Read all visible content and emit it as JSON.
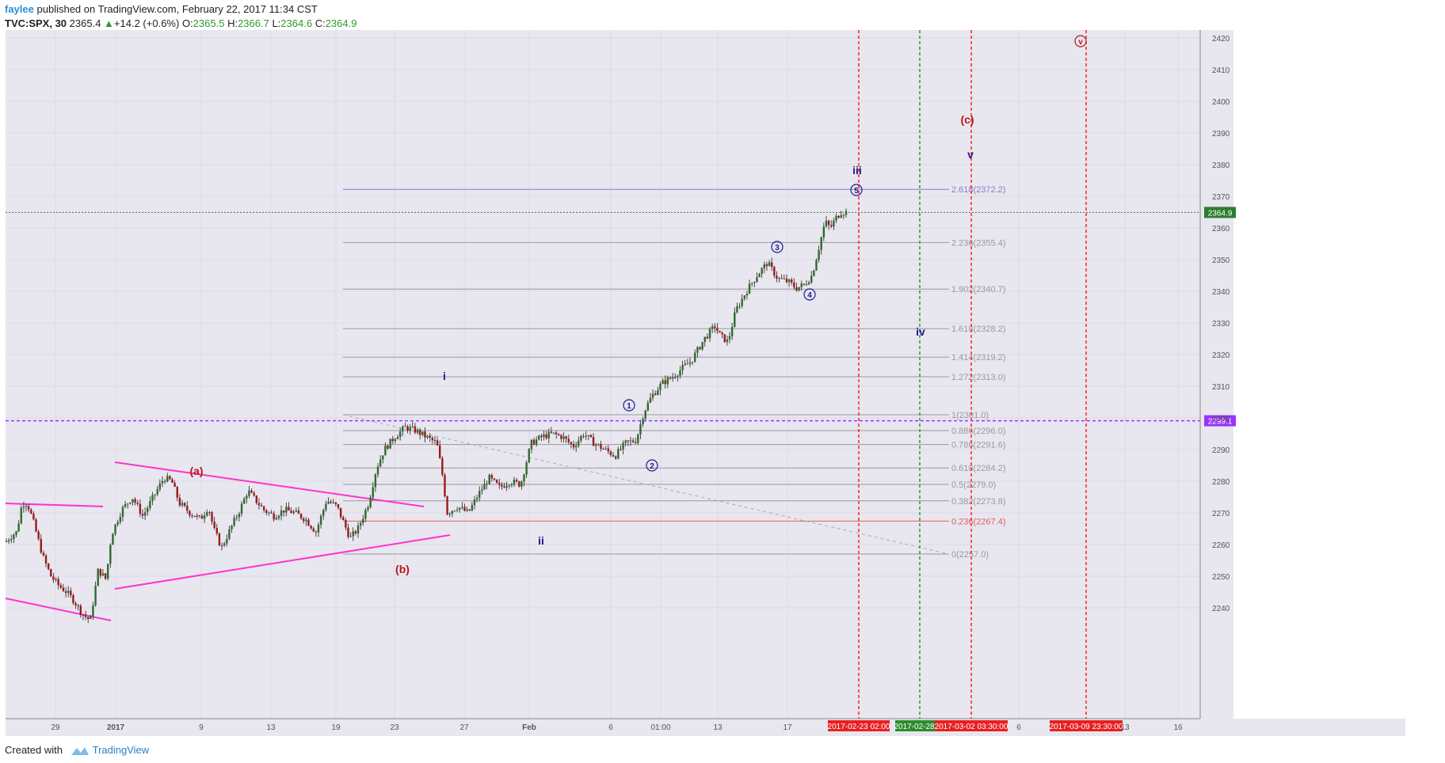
{
  "header": {
    "user": "faylee",
    "published": "published on TradingView.com, February 22, 2017 11:34 CST",
    "symbol": "TVC:SPX, 30",
    "last": "2365.4",
    "change": "+14.2 (+0.6%)",
    "o_label": "O:",
    "o_value": "2365.5",
    "h_label": "H:",
    "h_value": "2366.7",
    "l_label": "L:",
    "l_value": "2364.6",
    "c_label": "C:",
    "c_value": "2364.9"
  },
  "footer": {
    "created": "Created with",
    "brand": "TradingView"
  },
  "colors": {
    "bg": "#e8e6ef",
    "up": "#2e6b2e",
    "down": "#9b1a1a",
    "channel": "#ff33cc",
    "fib": "#9a9a9a",
    "fib_top": "#8080d0",
    "fib_low": "#e06060",
    "redline": "#ff2222",
    "greenline": "#339933",
    "purple": "#9933ff",
    "wave_red": "#b81818",
    "wave_blue": "#1c1c8c"
  },
  "chart_data": {
    "type": "candlestick",
    "title": "",
    "ylabel": "",
    "ylim": [
      2234,
      2421
    ],
    "y_ticks": [
      2240.0,
      2250.0,
      2260.0,
      2270.0,
      2280.0,
      2290.0,
      2300.0,
      2310.0,
      2320.0,
      2330.0,
      2340.0,
      2350.0,
      2360.0,
      2370.0,
      2380.0,
      2390.0,
      2400.0,
      2410.0,
      2420.0
    ],
    "x_ticks": [
      "29",
      "2017",
      "9",
      "13",
      "19",
      "23",
      "27",
      "Feb",
      "6",
      "01:00",
      "13",
      "17",
      "6",
      "13",
      "16"
    ],
    "price_path": [
      [
        0,
        2261
      ],
      [
        0.05,
        2262
      ],
      [
        0.12,
        2263
      ],
      [
        0.2,
        2264
      ],
      [
        0.3,
        2273
      ],
      [
        0.4,
        2273
      ],
      [
        0.5,
        2268
      ],
      [
        0.6,
        2262
      ],
      [
        0.7,
        2256
      ],
      [
        0.85,
        2250
      ],
      [
        1.0,
        2247
      ],
      [
        1.15,
        2245
      ],
      [
        1.3,
        2242
      ],
      [
        1.45,
        2238
      ],
      [
        1.6,
        2236
      ],
      [
        1.75,
        2252
      ],
      [
        1.9,
        2249
      ],
      [
        2.0,
        2263
      ],
      [
        2.2,
        2271
      ],
      [
        2.4,
        2275
      ],
      [
        2.6,
        2269
      ],
      [
        2.8,
        2275
      ],
      [
        3.0,
        2281
      ],
      [
        3.15,
        2280
      ],
      [
        3.3,
        2273
      ],
      [
        3.5,
        2270
      ],
      [
        3.7,
        2268
      ],
      [
        3.85,
        2272
      ],
      [
        3.95,
        2265
      ],
      [
        4.1,
        2259
      ],
      [
        4.3,
        2266
      ],
      [
        4.45,
        2271
      ],
      [
        4.6,
        2277
      ],
      [
        4.75,
        2274
      ],
      [
        4.9,
        2271
      ],
      [
        5.1,
        2269
      ],
      [
        5.3,
        2271
      ],
      [
        5.5,
        2270
      ],
      [
        5.7,
        2268
      ],
      [
        5.9,
        2264
      ],
      [
        6.1,
        2274
      ],
      [
        6.3,
        2272
      ],
      [
        6.45,
        2266
      ],
      [
        6.55,
        2262
      ],
      [
        6.7,
        2265
      ],
      [
        6.9,
        2273
      ],
      [
        7.05,
        2284
      ],
      [
        7.2,
        2290
      ],
      [
        7.4,
        2294
      ],
      [
        7.6,
        2297
      ],
      [
        7.8,
        2296
      ],
      [
        8.0,
        2294
      ],
      [
        8.2,
        2292
      ],
      [
        8.3,
        2283
      ],
      [
        8.4,
        2270
      ],
      [
        8.6,
        2272
      ],
      [
        8.8,
        2270
      ],
      [
        9.0,
        2276
      ],
      [
        9.2,
        2281
      ],
      [
        9.4,
        2278
      ],
      [
        9.6,
        2280
      ],
      [
        9.8,
        2279
      ],
      [
        10.0,
        2292
      ],
      [
        10.2,
        2294
      ],
      [
        10.4,
        2295
      ],
      [
        10.6,
        2294
      ],
      [
        10.8,
        2291
      ],
      [
        11.0,
        2295
      ],
      [
        11.2,
        2292
      ],
      [
        11.4,
        2290
      ],
      [
        11.6,
        2288
      ],
      [
        11.8,
        2292
      ],
      [
        12.0,
        2293
      ],
      [
        12.15,
        2302
      ],
      [
        12.3,
        2307
      ],
      [
        12.5,
        2311
      ],
      [
        12.7,
        2313
      ],
      [
        12.9,
        2316
      ],
      [
        13.05,
        2318
      ],
      [
        13.3,
        2325
      ],
      [
        13.5,
        2329
      ],
      [
        13.6,
        2326
      ],
      [
        13.75,
        2324
      ],
      [
        13.9,
        2334
      ],
      [
        14.1,
        2340
      ],
      [
        14.3,
        2345
      ],
      [
        14.5,
        2349
      ],
      [
        14.7,
        2344
      ],
      [
        14.9,
        2343
      ],
      [
        15.05,
        2341
      ],
      [
        15.2,
        2342
      ],
      [
        15.35,
        2345
      ],
      [
        15.5,
        2355
      ],
      [
        15.6,
        2362
      ],
      [
        15.7,
        2360
      ],
      [
        15.8,
        2363
      ],
      [
        15.9,
        2365
      ],
      [
        16.0,
        2365
      ]
    ],
    "fib_levels": [
      {
        "label": "2.618(2372.2)",
        "value": 2372.2
      },
      {
        "label": "2.236(2355.4)",
        "value": 2355.4
      },
      {
        "label": "1.902(2340.7)",
        "value": 2340.7
      },
      {
        "label": "1.618(2328.2)",
        "value": 2328.2
      },
      {
        "label": "1.414(2319.2)",
        "value": 2319.2
      },
      {
        "label": "1.272(2313.0)",
        "value": 2313.0
      },
      {
        "label": "1(2301.0)",
        "value": 2301.0
      },
      {
        "label": "0.886(2296.0)",
        "value": 2296.0
      },
      {
        "label": "0.786(2291.6)",
        "value": 2291.6
      },
      {
        "label": "0.618(2284.2)",
        "value": 2284.2
      },
      {
        "label": "0.5(2279.0)",
        "value": 2279.0
      },
      {
        "label": "0.382(2273.8)",
        "value": 2273.8
      },
      {
        "label": "0.236(2267.4)",
        "value": 2267.4
      },
      {
        "label": "0(2257.0)",
        "value": 2257.0
      }
    ],
    "horizontal_lines": {
      "current": 2364.9,
      "purple": 2299.1
    },
    "price_tags": {
      "current": "2364.9",
      "purple": "2299.1"
    },
    "vertical_lines": [
      {
        "label": "2017-02-23 02:00",
        "color": "red"
      },
      {
        "label": "2017-02-28 01",
        "color": "green"
      },
      {
        "label": "2017-03-02 03:30:00",
        "color": "red"
      },
      {
        "label": "2017-03-09 23:30:00",
        "color": "red"
      }
    ],
    "wave_labels": [
      {
        "text": "(a)",
        "color": "red",
        "price": 2282
      },
      {
        "text": "(b)",
        "color": "red",
        "price": 2251
      },
      {
        "text": "(c)",
        "color": "red",
        "price": 2393
      },
      {
        "text": "v",
        "color": "red",
        "price": 2418,
        "circled": true
      },
      {
        "text": "i",
        "color": "blue",
        "price": 2312
      },
      {
        "text": "ii",
        "color": "blue",
        "price": 2260
      },
      {
        "text": "iii",
        "color": "blue",
        "price": 2377
      },
      {
        "text": "iv",
        "color": "blue",
        "price": 2326
      },
      {
        "text": "v",
        "color": "blue",
        "price": 2382
      },
      {
        "text": "1",
        "color": "blue",
        "price": 2303,
        "circled": true
      },
      {
        "text": "2",
        "color": "blue",
        "price": 2284,
        "circled": true
      },
      {
        "text": "3",
        "color": "blue",
        "price": 2353,
        "circled": true
      },
      {
        "text": "4",
        "color": "blue",
        "price": 2338,
        "circled": true
      },
      {
        "text": "5",
        "color": "blue",
        "price": 2371,
        "circled": true
      }
    ]
  }
}
